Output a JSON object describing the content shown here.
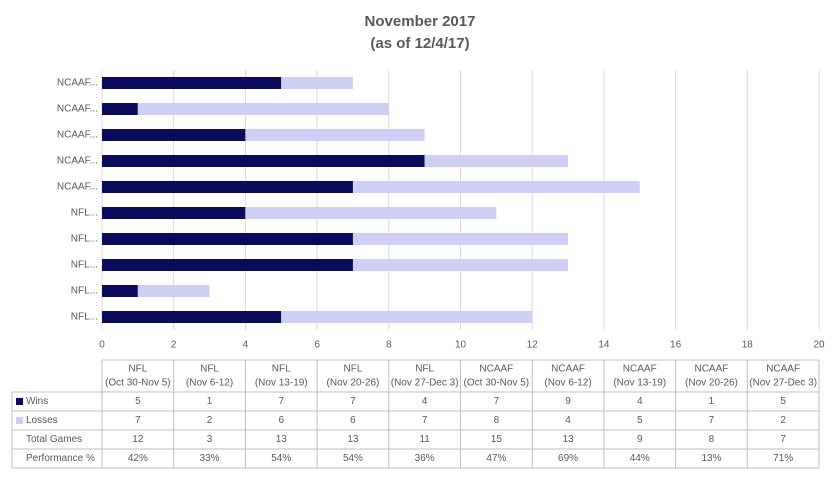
{
  "chart_data": {
    "type": "stacked-barh",
    "title": "November 2017",
    "subtitle": "(as of 12/4/17)",
    "categories": [
      "NFL...",
      "NFL...",
      "NFL...",
      "NFL...",
      "NFL...",
      "NCAAF...",
      "NCAAF...",
      "NCAAF...",
      "NCAAF...",
      "NCAAF..."
    ],
    "series": [
      {
        "name": "Wins",
        "color": "#0b0b5e",
        "values": [
          5,
          1,
          7,
          7,
          4,
          7,
          9,
          4,
          1,
          5
        ]
      },
      {
        "name": "Losses",
        "color": "#cfcff5",
        "values": [
          7,
          2,
          6,
          6,
          7,
          8,
          4,
          5,
          7,
          2
        ]
      }
    ],
    "xlim": [
      0,
      20
    ],
    "xticks": [
      0,
      2,
      4,
      6,
      8,
      10,
      12,
      14,
      16,
      18,
      20
    ],
    "grid": true,
    "data_table": {
      "columns": [
        {
          "league": "NFL",
          "period": "(Oct 30-Nov 5)"
        },
        {
          "league": "NFL",
          "period": "(Nov 6-12)"
        },
        {
          "league": "NFL",
          "period": "(Nov 13-19)"
        },
        {
          "league": "NFL",
          "period": "(Nov 20-26)"
        },
        {
          "league": "NFL",
          "period": "(Nov 27-Dec 3)"
        },
        {
          "league": "NCAAF",
          "period": "(Oct 30-Nov 5)"
        },
        {
          "league": "NCAAF",
          "period": "(Nov 6-12)"
        },
        {
          "league": "NCAAF",
          "period": "(Nov 13-19)"
        },
        {
          "league": "NCAAF",
          "period": "(Nov 20-26)"
        },
        {
          "league": "NCAAF",
          "period": "(Nov 27-Dec 3)"
        }
      ],
      "rows": [
        {
          "label": "Total Games",
          "values": [
            12,
            3,
            13,
            13,
            11,
            15,
            13,
            9,
            8,
            7
          ]
        },
        {
          "label": "Performance %",
          "values": [
            42,
            33,
            54,
            54,
            36,
            47,
            69,
            44,
            13,
            71
          ],
          "value_labels": [
            "42%",
            "33%",
            "54%",
            "54%",
            "36%",
            "47%",
            "69%",
            "44%",
            "13%",
            "71%"
          ]
        }
      ]
    }
  }
}
